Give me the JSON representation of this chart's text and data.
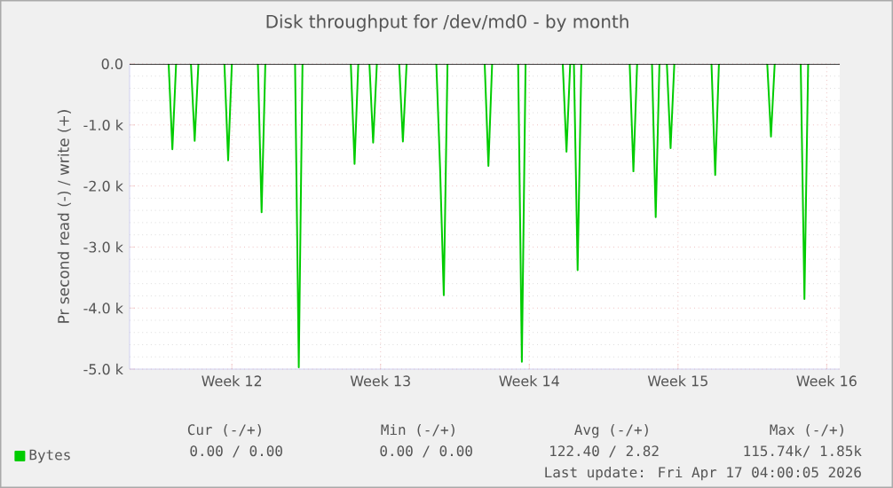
{
  "chart_data": {
    "type": "line",
    "title": "Disk throughput for /dev/md0 - by month",
    "ylabel": "Pr second read (-) / write (+)",
    "ylim": [
      -5000,
      0
    ],
    "yticks": [
      {
        "value": -5000,
        "label": "-5.0 k"
      },
      {
        "value": -4000,
        "label": "-4.0 k"
      },
      {
        "value": -3000,
        "label": "-3.0 k"
      },
      {
        "value": -2000,
        "label": "-2.0 k"
      },
      {
        "value": -1000,
        "label": "-1.0 k"
      },
      {
        "value": 0,
        "label": "0.0"
      }
    ],
    "categories": [
      null,
      null,
      null,
      null,
      null,
      null,
      null,
      null,
      null,
      null,
      null,
      null,
      null,
      null,
      null,
      null,
      null,
      null,
      null,
      null,
      null,
      null,
      null,
      null,
      null,
      null,
      null,
      "Week 12",
      null,
      null,
      null,
      null,
      null,
      null,
      null,
      null,
      null,
      null,
      null,
      null,
      null,
      null,
      null,
      null,
      null,
      null,
      null,
      null,
      null,
      null,
      null,
      null,
      null,
      null,
      null,
      null,
      null,
      null,
      null,
      null,
      null,
      null,
      null,
      null,
      null,
      null,
      null,
      "Week 13",
      null,
      null,
      null,
      null,
      null,
      null,
      null,
      null,
      null,
      null,
      null,
      null,
      null,
      null,
      null,
      null,
      null,
      null,
      null,
      null,
      null,
      null,
      null,
      null,
      null,
      null,
      null,
      null,
      null,
      null,
      null,
      null,
      null,
      null,
      null,
      null,
      null,
      null,
      null,
      "Week 14",
      null,
      null,
      null,
      null,
      null,
      null,
      null,
      null,
      null,
      null,
      null,
      null,
      null,
      null,
      null,
      null,
      null,
      null,
      null,
      null,
      null,
      null,
      null,
      null,
      null,
      null,
      null,
      null,
      null,
      null,
      null,
      null,
      null,
      null,
      null,
      null,
      null,
      null,
      null,
      "Week 15",
      null,
      null,
      null,
      null,
      null,
      null,
      null,
      null,
      null,
      null,
      null,
      null,
      null,
      null,
      null,
      null,
      null,
      null,
      null,
      null,
      null,
      null,
      null,
      null,
      null,
      null,
      null,
      null,
      null,
      null,
      null,
      null,
      null,
      null,
      null,
      null,
      null,
      null,
      null,
      "Week 16",
      null,
      null,
      null
    ],
    "grid": true,
    "legend": "bottom left",
    "marker": "none",
    "line_style": "solid",
    "ref_lines": [
      {
        "axis": "y",
        "value": 0,
        "color": "#000000"
      }
    ],
    "series": [
      {
        "name": "Bytes",
        "color": "#00cc00",
        "values": [
          null,
          null,
          null,
          null,
          null,
          null,
          null,
          null,
          null,
          null,
          0,
          -1400,
          0,
          null,
          null,
          null,
          0,
          -1260,
          0,
          null,
          null,
          null,
          null,
          null,
          null,
          0,
          -1580,
          0,
          null,
          null,
          null,
          null,
          null,
          null,
          0,
          -2430,
          0,
          null,
          null,
          null,
          null,
          null,
          null,
          null,
          0,
          -4970,
          0,
          null,
          null,
          null,
          null,
          null,
          null,
          null,
          null,
          null,
          null,
          null,
          null,
          0,
          -1640,
          0,
          null,
          null,
          0,
          -1290,
          0,
          null,
          null,
          null,
          null,
          null,
          0,
          -1270,
          0,
          null,
          null,
          null,
          null,
          null,
          null,
          null,
          0,
          -1700,
          -3790,
          0,
          null,
          null,
          null,
          null,
          null,
          null,
          null,
          null,
          null,
          0,
          -1670,
          0,
          null,
          null,
          null,
          null,
          null,
          null,
          0,
          -4880,
          0,
          null,
          null,
          null,
          null,
          null,
          null,
          null,
          null,
          null,
          0,
          -1440,
          0,
          0,
          -3380,
          0,
          null,
          null,
          null,
          null,
          null,
          null,
          null,
          null,
          null,
          null,
          null,
          null,
          0,
          -1760,
          0,
          null,
          null,
          null,
          0,
          -2510,
          0,
          null,
          0,
          -1380,
          0,
          null,
          null,
          null,
          null,
          null,
          null,
          null,
          null,
          null,
          0,
          -1820,
          0,
          null,
          null,
          null,
          null,
          null,
          null,
          null,
          null,
          null,
          null,
          null,
          null,
          0,
          -1190,
          0,
          null,
          null,
          null,
          null,
          null,
          null,
          0,
          -3850,
          0,
          null,
          null,
          null,
          null,
          null,
          null,
          null,
          null
        ]
      }
    ],
    "annotations": [
      "Cur (-/+)",
      "Min (-/+)",
      "Avg (-/+)",
      "Max (-/+)",
      "0.00 /   0.00",
      "0.00 /   0.00",
      "122.40 /   2.82",
      "115.74k/   1.85k",
      "Last update: Fri Apr 17 04:00:05 2026"
    ]
  }
}
